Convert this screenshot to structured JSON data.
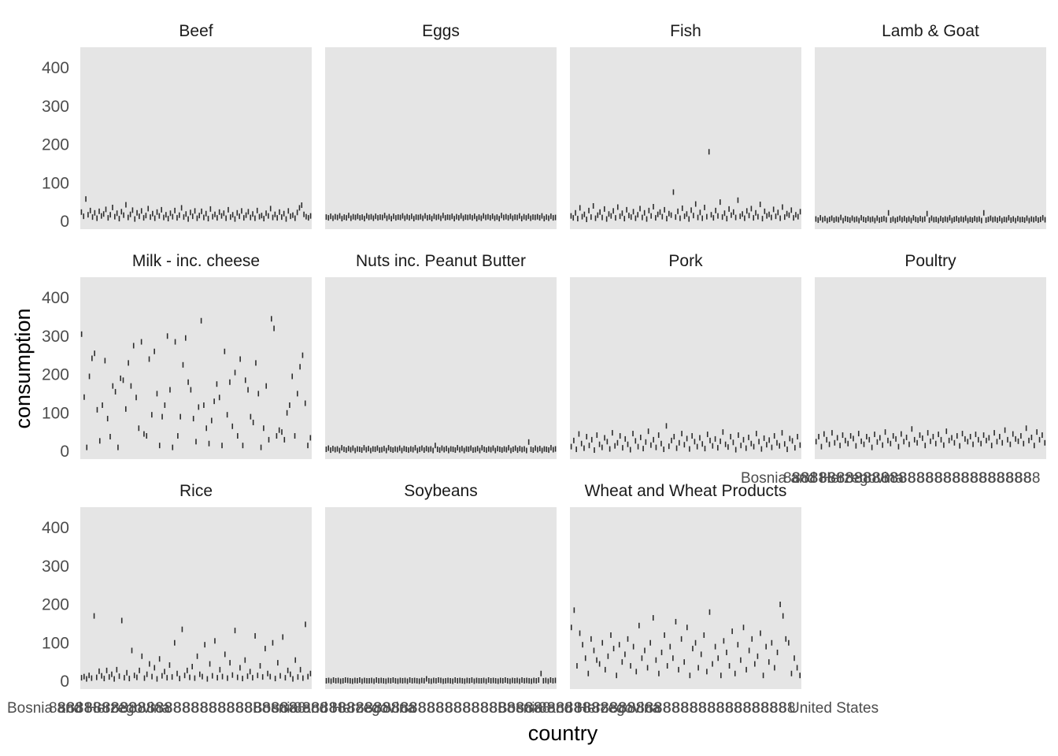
{
  "chart_data": {
    "type": "box",
    "xlabel": "country",
    "ylabel": "consumption",
    "ylim": [
      0,
      450
    ],
    "yticks": [
      0,
      100,
      200,
      300,
      400
    ],
    "grid": false,
    "x_tick_label_start": "Bosnia and Herzegovina",
    "x_tick_label_end": "United States",
    "panel_layout": "3 rows x 4 columns",
    "panels": [
      {
        "title": "Beef",
        "values": [
          24,
          13,
          58,
          17,
          28,
          11,
          22,
          8,
          26,
          14,
          19,
          31,
          9,
          17,
          36,
          12,
          21,
          7,
          25,
          16,
          43,
          10,
          18,
          29,
          6,
          22,
          13,
          27,
          9,
          15,
          33,
          11,
          20,
          8,
          24,
          14,
          30,
          10,
          17,
          7,
          21,
          12,
          28,
          9,
          16,
          35,
          11,
          19,
          6,
          23,
          13,
          27,
          8,
          15,
          26,
          10,
          20,
          7,
          32,
          12,
          18,
          9,
          24,
          14,
          21,
          8,
          30,
          11,
          17,
          6,
          22,
          13,
          27,
          9,
          16,
          25,
          10,
          19,
          8,
          28,
          12,
          15,
          7,
          21,
          14,
          33,
          10,
          18,
          9,
          24,
          11,
          20,
          6,
          27,
          13,
          16,
          8,
          23,
          35,
          42,
          18,
          12,
          9,
          14
        ]
      },
      {
        "title": "Eggs",
        "values": [
          11,
          9,
          13,
          8,
          12,
          10,
          14,
          7,
          11,
          9,
          15,
          8,
          12,
          10,
          13,
          9,
          11,
          7,
          14,
          10,
          12,
          8,
          13,
          9,
          11,
          10,
          15,
          8,
          12,
          7,
          13,
          9,
          11,
          10,
          14,
          8,
          12,
          9,
          13,
          7,
          11,
          10,
          12,
          8,
          14,
          9,
          11,
          7,
          13,
          10,
          12,
          8,
          15,
          9,
          11,
          10,
          13,
          7,
          12,
          9,
          14,
          8,
          11,
          10,
          12,
          9,
          13,
          7,
          11,
          8,
          14,
          10,
          12,
          9,
          13,
          8,
          11,
          7,
          15,
          10,
          12,
          9,
          13,
          8,
          11,
          10,
          14,
          7,
          12,
          9,
          13,
          8,
          11,
          10,
          12,
          9,
          14,
          7,
          11,
          8,
          13,
          9,
          10
        ]
      },
      {
        "title": "Fish",
        "values": [
          14,
          9,
          22,
          7,
          35,
          12,
          18,
          5,
          28,
          11,
          40,
          8,
          16,
          24,
          10,
          32,
          6,
          19,
          14,
          27,
          9,
          37,
          13,
          21,
          7,
          30,
          15,
          11,
          25,
          8,
          17,
          33,
          10,
          22,
          6,
          28,
          14,
          38,
          9,
          18,
          24,
          12,
          30,
          7,
          20,
          16,
          76,
          11,
          26,
          8,
          34,
          13,
          19,
          6,
          29,
          15,
          45,
          10,
          23,
          8,
          36,
          12,
          181,
          17,
          9,
          28,
          14,
          50,
          11,
          21,
          7,
          32,
          16,
          24,
          10,
          55,
          13,
          19,
          8,
          27,
          15,
          33,
          9,
          22,
          12,
          44,
          7,
          26,
          14,
          18,
          10,
          31,
          13,
          23,
          8,
          37,
          11,
          20,
          16,
          29,
          9,
          17,
          12,
          25
        ]
      },
      {
        "title": "Lamb & Goat",
        "values": [
          6,
          3,
          9,
          4,
          7,
          2,
          5,
          8,
          3,
          6,
          4,
          10,
          2,
          7,
          5,
          3,
          8,
          4,
          6,
          2,
          9,
          5,
          3,
          7,
          4,
          6,
          2,
          8,
          3,
          5,
          7,
          4,
          22,
          3,
          6,
          2,
          5,
          8,
          4,
          7,
          3,
          6,
          2,
          9,
          5,
          3,
          7,
          4,
          6,
          20,
          3,
          8,
          4,
          5,
          2,
          7,
          3,
          6,
          4,
          9,
          2,
          5,
          7,
          3,
          6,
          4,
          8,
          2,
          5,
          3,
          7,
          4,
          6,
          2,
          22,
          3,
          5,
          8,
          4,
          6,
          3,
          7,
          2,
          5,
          4,
          9,
          3,
          6,
          2,
          7,
          4,
          5,
          3,
          8,
          2,
          6,
          4,
          7,
          3,
          5,
          9,
          4
        ]
      },
      {
        "title": "Milk - inc. cheese",
        "values": [
          305,
          141,
          10,
          195,
          242,
          255,
          108,
          27,
          120,
          236,
          85,
          38,
          170,
          155,
          10,
          190,
          185,
          110,
          230,
          170,
          275,
          140,
          60,
          285,
          45,
          40,
          240,
          95,
          260,
          150,
          15,
          90,
          120,
          300,
          160,
          10,
          285,
          40,
          90,
          225,
          295,
          180,
          160,
          85,
          25,
          115,
          340,
          120,
          60,
          20,
          80,
          130,
          175,
          140,
          15,
          260,
          95,
          180,
          65,
          205,
          40,
          240,
          15,
          185,
          160,
          90,
          75,
          230,
          150,
          10,
          60,
          170,
          30,
          345,
          320,
          40,
          55,
          50,
          30,
          100,
          120,
          195,
          40,
          150,
          220,
          250,
          125,
          15,
          35
        ]
      },
      {
        "title": "Nuts inc. Peanut Butter",
        "values": [
          5,
          8,
          3,
          7,
          4,
          6,
          2,
          9,
          5,
          3,
          7,
          4,
          8,
          2,
          6,
          5,
          3,
          9,
          4,
          7,
          2,
          6,
          5,
          8,
          3,
          4,
          7,
          2,
          9,
          5,
          3,
          6,
          4,
          8,
          2,
          7,
          5,
          3,
          6,
          4,
          9,
          2,
          5,
          8,
          3,
          7,
          4,
          6,
          2,
          15,
          5,
          3,
          8,
          4,
          7,
          2,
          6,
          5,
          3,
          9,
          4,
          7,
          2,
          6,
          5,
          8,
          3,
          4,
          7,
          2,
          9,
          5,
          3,
          6,
          4,
          8,
          2,
          7,
          5,
          3,
          6,
          4,
          9,
          2,
          5,
          8,
          3,
          7,
          4,
          6,
          2,
          24,
          5,
          3,
          8,
          4,
          7,
          2,
          6,
          5,
          3,
          9,
          4,
          6
        ]
      },
      {
        "title": "Pork",
        "values": [
          12,
          28,
          5,
          45,
          20,
          8,
          38,
          15,
          30,
          3,
          42,
          18,
          10,
          35,
          25,
          6,
          48,
          14,
          22,
          40,
          9,
          32,
          18,
          4,
          46,
          27,
          12,
          36,
          7,
          24,
          52,
          16,
          30,
          10,
          42,
          20,
          5,
          66,
          13,
          28,
          38,
          8,
          22,
          46,
          17,
          33,
          6,
          40,
          25,
          12,
          35,
          19,
          7,
          44,
          28,
          14,
          32,
          9,
          26,
          50,
          18,
          11,
          38,
          23,
          4,
          42,
          15,
          30,
          8,
          36,
          20,
          12,
          46,
          25,
          6,
          34,
          17,
          29,
          10,
          40,
          22,
          14,
          48,
          19,
          5,
          33,
          27,
          9,
          38,
          16
        ]
      },
      {
        "title": "Poultry",
        "values": [
          25,
          38,
          12,
          45,
          30,
          18,
          48,
          22,
          35,
          15,
          42,
          28,
          20,
          40,
          33,
          14,
          46,
          26,
          18,
          38,
          30,
          10,
          44,
          24,
          35,
          16,
          50,
          28,
          20,
          40,
          32,
          12,
          45,
          25,
          36,
          18,
          58,
          30,
          22,
          42,
          34,
          15,
          48,
          26,
          38,
          20,
          44,
          30,
          16,
          52,
          28,
          35,
          22,
          40,
          14,
          46,
          32,
          25,
          38,
          18,
          44,
          30,
          20,
          42,
          28,
          35,
          15,
          48,
          25,
          38,
          22,
          55,
          30,
          18,
          45,
          32,
          26,
          40,
          20,
          60,
          28,
          36,
          15,
          50,
          30,
          42,
          22
        ]
      },
      {
        "title": "Rice",
        "values": [
          9,
          12,
          6,
          15,
          8,
          170,
          10,
          26,
          14,
          7,
          28,
          11,
          18,
          6,
          30,
          13,
          158,
          9,
          22,
          7,
          80,
          15,
          10,
          28,
          65,
          8,
          18,
          45,
          12,
          35,
          6,
          58,
          14,
          25,
          9,
          42,
          11,
          100,
          20,
          7,
          135,
          15,
          28,
          10,
          38,
          8,
          65,
          18,
          12,
          95,
          6,
          45,
          14,
          105,
          9,
          30,
          12,
          70,
          8,
          48,
          16,
          132,
          10,
          35,
          7,
          55,
          13,
          25,
          9,
          118,
          15,
          40,
          11,
          85,
          20,
          12,
          100,
          7,
          48,
          14,
          115,
          9,
          28,
          18,
          6,
          55,
          11,
          30,
          8,
          148,
          12,
          20
        ]
      },
      {
        "title": "Soybeans",
        "values": [
          1,
          2,
          0,
          3,
          1,
          2,
          0,
          1,
          3,
          2,
          1,
          0,
          2,
          1,
          3,
          0,
          2,
          1,
          1,
          2,
          0,
          3,
          1,
          2,
          1,
          0,
          2,
          1,
          3,
          1,
          0,
          2,
          1,
          2,
          0,
          3,
          1,
          2,
          1,
          0,
          2,
          1,
          6,
          1,
          0,
          2,
          1,
          3,
          2,
          0,
          1,
          2,
          1,
          0,
          3,
          1,
          2,
          1,
          0,
          2,
          1,
          3,
          0,
          2,
          1,
          1,
          2,
          0,
          3,
          1,
          2,
          1,
          0,
          2,
          1,
          3,
          1,
          0,
          2,
          1,
          2,
          0,
          3,
          1,
          2,
          1,
          0,
          2,
          1,
          3,
          20,
          1,
          2,
          0,
          3,
          1,
          2
        ]
      },
      {
        "title": "Wheat and Wheat Products",
        "values": [
          140,
          185,
          40,
          125,
          95,
          60,
          20,
          110,
          80,
          55,
          45,
          100,
          30,
          65,
          120,
          85,
          15,
          95,
          50,
          70,
          110,
          40,
          90,
          25,
          145,
          60,
          80,
          35,
          100,
          165,
          55,
          20,
          75,
          120,
          40,
          90,
          60,
          155,
          30,
          110,
          50,
          140,
          15,
          85,
          100,
          35,
          70,
          120,
          25,
          180,
          45,
          90,
          60,
          15,
          105,
          75,
          40,
          130,
          20,
          95,
          55,
          140,
          30,
          80,
          110,
          45,
          65,
          125,
          15,
          90,
          50,
          100,
          35,
          75,
          200,
          170,
          110,
          100,
          20,
          60,
          35,
          15
        ]
      }
    ]
  }
}
